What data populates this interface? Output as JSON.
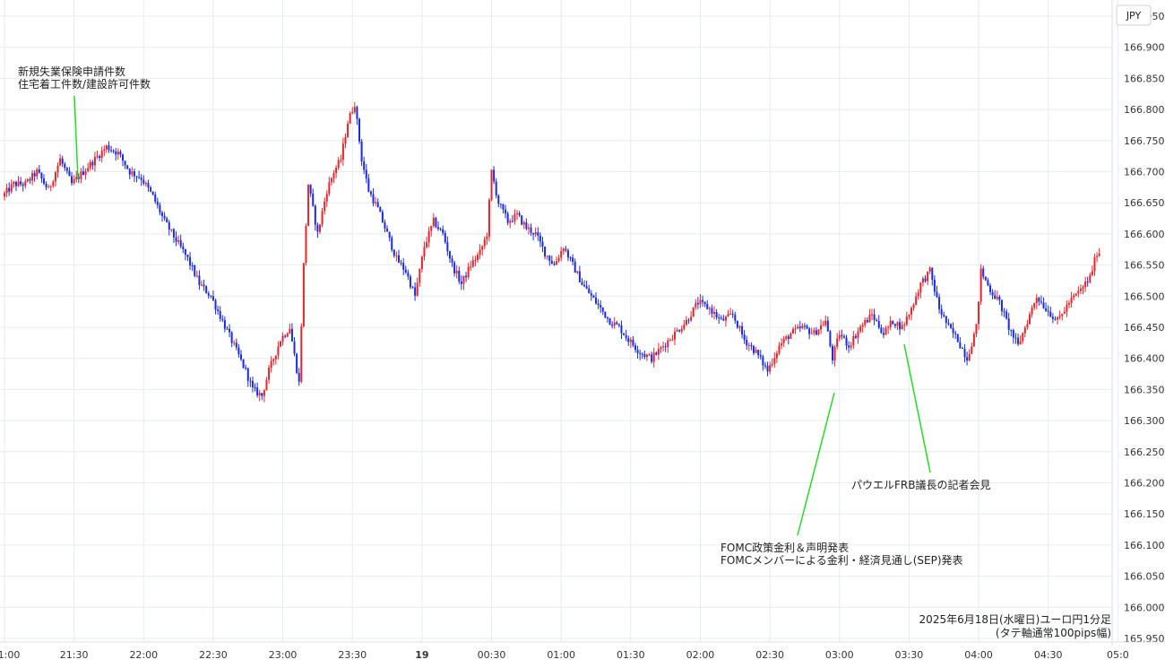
{
  "chart_data": {
    "type": "candlestick",
    "currency_label": "JPY",
    "caption": [
      "2025年6月18日(水曜日)ユーロ円1分足",
      "(タテ軸通常100pips幅)"
    ],
    "ylim": [
      165.95,
      166.97
    ],
    "y_ticks": [
      "166.950",
      "166.900",
      "166.850",
      "166.800",
      "166.750",
      "166.700",
      "166.650",
      "166.600",
      "166.550",
      "166.500",
      "166.450",
      "166.400",
      "166.350",
      "166.300",
      "166.250",
      "166.200",
      "166.150",
      "166.100",
      "166.050",
      "166.000",
      "165.950"
    ],
    "x_range_minutes": [
      0,
      735
    ],
    "x_ticks": [
      {
        "label": "1:00",
        "minute": 0,
        "bold": false
      },
      {
        "label": "21:30",
        "minute": 30,
        "bold": false
      },
      {
        "label": "22:00",
        "minute": 60,
        "bold": false
      },
      {
        "label": "22:30",
        "minute": 90,
        "bold": false
      },
      {
        "label": "23:00",
        "minute": 120,
        "bold": false
      },
      {
        "label": "23:30",
        "minute": 150,
        "bold": false
      },
      {
        "label": "19",
        "minute": 180,
        "bold": true
      },
      {
        "label": "00:30",
        "minute": 210,
        "bold": false
      },
      {
        "label": "01:00",
        "minute": 240,
        "bold": false
      },
      {
        "label": "01:30",
        "minute": 270,
        "bold": false
      },
      {
        "label": "02:00",
        "minute": 300,
        "bold": false
      },
      {
        "label": "02:30",
        "minute": 330,
        "bold": false
      },
      {
        "label": "03:00",
        "minute": 360,
        "bold": false
      },
      {
        "label": "03:30",
        "minute": 390,
        "bold": false
      },
      {
        "label": "04:00",
        "minute": 420,
        "bold": false
      },
      {
        "label": "04:30",
        "minute": 450,
        "bold": false
      },
      {
        "label": "05:0",
        "minute": 480,
        "bold": false
      }
    ],
    "up_color": "#e8232a",
    "down_color": "#1a2be0",
    "annotation_color": "#22dd22",
    "price_path": [
      [
        0,
        166.66
      ],
      [
        5,
        166.68
      ],
      [
        10,
        166.68
      ],
      [
        15,
        166.7
      ],
      [
        20,
        166.67
      ],
      [
        25,
        166.72
      ],
      [
        30,
        166.68
      ],
      [
        35,
        166.7
      ],
      [
        40,
        166.72
      ],
      [
        45,
        166.74
      ],
      [
        50,
        166.73
      ],
      [
        55,
        166.7
      ],
      [
        60,
        166.69
      ],
      [
        65,
        166.66
      ],
      [
        70,
        166.62
      ],
      [
        75,
        166.59
      ],
      [
        80,
        166.56
      ],
      [
        85,
        166.52
      ],
      [
        90,
        166.5
      ],
      [
        95,
        166.46
      ],
      [
        100,
        166.42
      ],
      [
        105,
        166.38
      ],
      [
        108,
        166.35
      ],
      [
        112,
        166.34
      ],
      [
        115,
        166.38
      ],
      [
        120,
        166.43
      ],
      [
        124,
        166.45
      ],
      [
        128,
        166.36
      ],
      [
        130,
        166.55
      ],
      [
        132,
        166.68
      ],
      [
        136,
        166.6
      ],
      [
        140,
        166.67
      ],
      [
        143,
        166.7
      ],
      [
        146,
        166.72
      ],
      [
        149,
        166.78
      ],
      [
        152,
        166.81
      ],
      [
        155,
        166.72
      ],
      [
        158,
        166.67
      ],
      [
        162,
        166.64
      ],
      [
        166,
        166.6
      ],
      [
        170,
        166.56
      ],
      [
        174,
        166.54
      ],
      [
        178,
        166.5
      ],
      [
        182,
        166.58
      ],
      [
        186,
        166.62
      ],
      [
        190,
        166.6
      ],
      [
        194,
        166.55
      ],
      [
        198,
        166.52
      ],
      [
        202,
        166.55
      ],
      [
        206,
        166.57
      ],
      [
        209,
        166.6
      ],
      [
        211,
        166.7
      ],
      [
        214,
        166.65
      ],
      [
        218,
        166.62
      ],
      [
        222,
        166.63
      ],
      [
        226,
        166.61
      ],
      [
        230,
        166.6
      ],
      [
        234,
        166.57
      ],
      [
        238,
        166.55
      ],
      [
        242,
        166.58
      ],
      [
        246,
        166.55
      ],
      [
        250,
        166.52
      ],
      [
        254,
        166.5
      ],
      [
        258,
        166.48
      ],
      [
        262,
        166.46
      ],
      [
        266,
        166.45
      ],
      [
        270,
        166.43
      ],
      [
        275,
        166.41
      ],
      [
        280,
        166.4
      ],
      [
        285,
        166.42
      ],
      [
        290,
        166.44
      ],
      [
        295,
        166.46
      ],
      [
        300,
        166.49
      ],
      [
        305,
        166.48
      ],
      [
        310,
        166.46
      ],
      [
        315,
        166.47
      ],
      [
        320,
        166.43
      ],
      [
        325,
        166.41
      ],
      [
        330,
        166.38
      ],
      [
        335,
        166.42
      ],
      [
        340,
        166.44
      ],
      [
        345,
        166.45
      ],
      [
        350,
        166.44
      ],
      [
        355,
        166.46
      ],
      [
        358,
        166.4
      ],
      [
        361,
        166.44
      ],
      [
        365,
        166.42
      ],
      [
        370,
        166.45
      ],
      [
        375,
        166.47
      ],
      [
        380,
        166.44
      ],
      [
        384,
        166.46
      ],
      [
        388,
        166.45
      ],
      [
        392,
        166.48
      ],
      [
        396,
        166.52
      ],
      [
        400,
        166.54
      ],
      [
        404,
        166.48
      ],
      [
        408,
        166.45
      ],
      [
        412,
        166.43
      ],
      [
        416,
        166.4
      ],
      [
        420,
        166.45
      ],
      [
        422,
        166.54
      ],
      [
        426,
        166.51
      ],
      [
        430,
        166.49
      ],
      [
        434,
        166.45
      ],
      [
        438,
        166.42
      ],
      [
        442,
        166.46
      ],
      [
        446,
        166.5
      ],
      [
        450,
        166.48
      ],
      [
        455,
        166.46
      ],
      [
        460,
        166.49
      ],
      [
        465,
        166.51
      ],
      [
        469,
        166.53
      ],
      [
        472,
        166.57
      ]
    ],
    "annotations": [
      {
        "lines": [
          "新規失業保険申請件数",
          "住宅着工件数/建設許可件数"
        ],
        "minute": 29,
        "price": 166.71
      },
      {
        "lines": [
          "FOMC政策金利＆声明発表",
          "FOMCメンバーによる金利・経済見通し(SEP)発表"
        ],
        "minute": 360,
        "price": 166.38
      },
      {
        "lines": [
          "パウエルFRB議長の記者会見"
        ],
        "minute": 388,
        "price": 166.45
      }
    ]
  }
}
